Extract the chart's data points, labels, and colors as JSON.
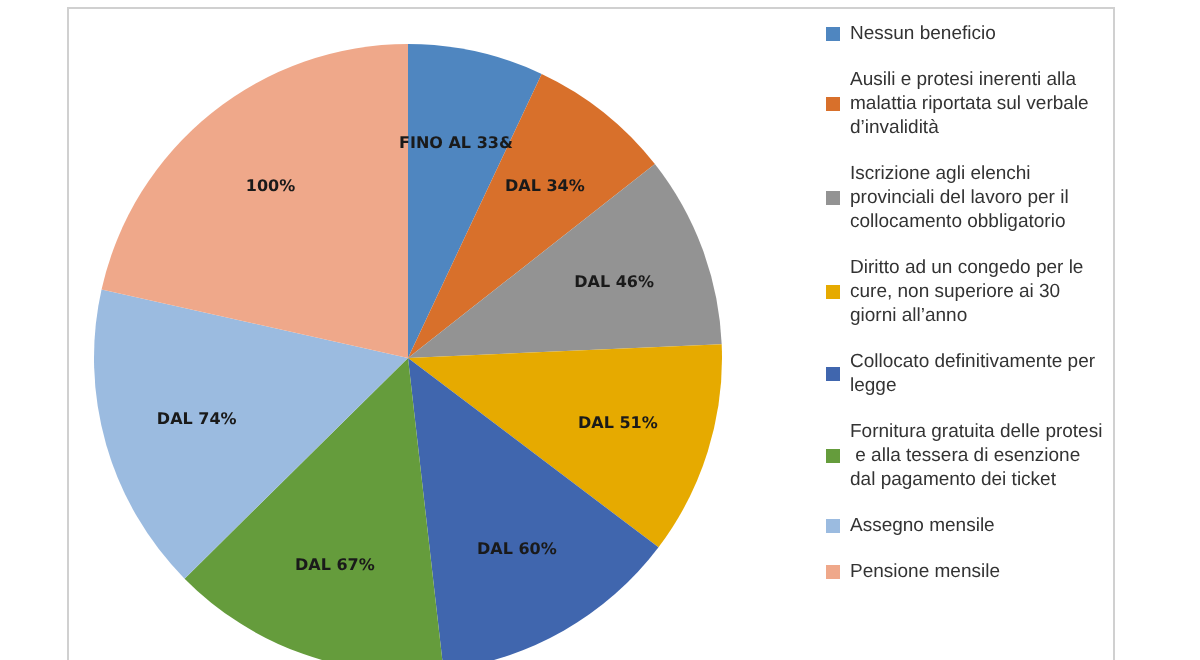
{
  "chart_data": {
    "type": "pie",
    "categories": [
      "Nessun beneficio",
      "Ausili e protesi inerenti alla malattia riportata sul verbale d’invalidità",
      "Iscrizione agli elenchi provinciali del lavoro per il collocamento obbligatorio",
      "Diritto ad un congedo per le cure, non superiore ai 30 giorni all’anno",
      "Collocato definitivamente per legge",
      "Fornitura gratuita delle protesi e alla tessera di esenzione dal pagamento dei ticket",
      "Assegno mensile",
      "Pensione mensile"
    ],
    "values": [
      7.0,
      7.4,
      9.9,
      11.0,
      12.9,
      14.4,
      15.9,
      21.5
    ],
    "colors": [
      "#4f86c0",
      "#d8702b",
      "#939393",
      "#e6aa00",
      "#4066ae",
      "#659c3c",
      "#9bbbe0",
      "#efa88a"
    ],
    "annotations": [
      "FINO AL 33&",
      "DAL 34%",
      "DAL 46%",
      "DAL 51%",
      "DAL 60%",
      "DAL 67%",
      "DAL 74%",
      "100%"
    ],
    "legend": "right"
  }
}
